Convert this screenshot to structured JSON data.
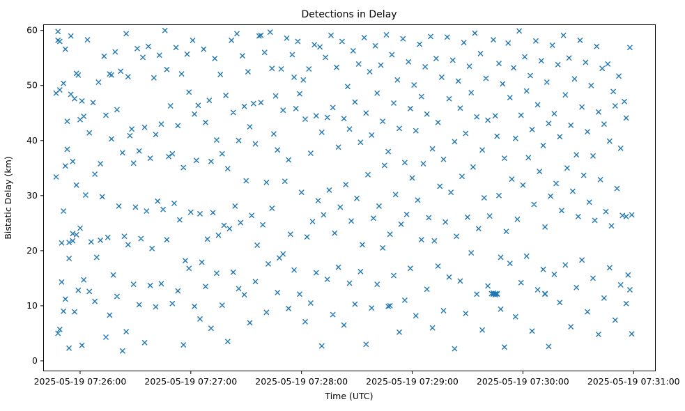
{
  "chart_data": {
    "type": "scatter",
    "title": "Detections in Delay",
    "xlabel": "Time (UTC)",
    "ylabel": "Bistatic Delay (km)",
    "marker": "x",
    "marker_color": "#1f77b4",
    "grid": false,
    "legend": null,
    "x_unit": "seconds relative to 2025-05-19 07:26:00 UTC",
    "xlim_seconds": [
      -20,
      312
    ],
    "ylim": [
      -1.9,
      61.1
    ],
    "x_tick_seconds": [
      0,
      60,
      120,
      180,
      240,
      300
    ],
    "x_tick_labels": [
      "2025-05-19 07:26:00",
      "2025-05-19 07:27:00",
      "2025-05-19 07:28:00",
      "2025-05-19 07:29:00",
      "2025-05-19 07:30:00",
      "2025-05-19 07:31:00"
    ],
    "y_ticks": [
      0,
      10,
      20,
      30,
      40,
      50,
      60
    ],
    "points": [
      [
        -13,
        48.6
      ],
      [
        -12,
        58.2
      ],
      [
        -13,
        33.4
      ],
      [
        -11,
        58.0
      ],
      [
        -11,
        49.2
      ],
      [
        -10,
        21.4
      ],
      [
        -10,
        14.3
      ],
      [
        -12,
        59.8
      ],
      [
        -9,
        50.4
      ],
      [
        -9,
        27.2
      ],
      [
        -8,
        11.2
      ],
      [
        -12,
        5.0
      ],
      [
        -8,
        56.6
      ],
      [
        -7,
        43.5
      ],
      [
        -7,
        38.4
      ],
      [
        -6,
        21.5
      ],
      [
        -6,
        2.3
      ],
      [
        -5,
        59.0
      ],
      [
        -5,
        48.4
      ],
      [
        -4,
        36.2
      ],
      [
        -4,
        23.1
      ],
      [
        -3,
        8.9
      ],
      [
        -3,
        47.6
      ],
      [
        -2,
        31.9
      ],
      [
        -2,
        22.9
      ],
      [
        -1,
        12.8
      ],
      [
        -1,
        51.9
      ],
      [
        0,
        43.8
      ],
      [
        0,
        24.1
      ],
      [
        -6,
        18.6
      ],
      [
        -9,
        9.0
      ],
      [
        -2,
        52.2
      ],
      [
        -8,
        35.4
      ],
      [
        -4,
        21.8
      ],
      [
        -11,
        5.7
      ],
      [
        1,
        47.2
      ],
      [
        2,
        44.4
      ],
      [
        3,
        30.1
      ],
      [
        2,
        14.7
      ],
      [
        1,
        2.8
      ],
      [
        4,
        58.3
      ],
      [
        5,
        41.4
      ],
      [
        6,
        21.6
      ],
      [
        5,
        12.6
      ],
      [
        7,
        46.9
      ],
      [
        8,
        33.9
      ],
      [
        9,
        18.8
      ],
      [
        8,
        10.8
      ],
      [
        10,
        50.6
      ],
      [
        11,
        35.8
      ],
      [
        12,
        29.8
      ],
      [
        11,
        21.9
      ],
      [
        13,
        55.3
      ],
      [
        14,
        44.6
      ],
      [
        15,
        22.4
      ],
      [
        14,
        4.3
      ],
      [
        16,
        52.1
      ],
      [
        17,
        51.9
      ],
      [
        17,
        40.3
      ],
      [
        18,
        15.6
      ],
      [
        16,
        8.3
      ],
      [
        19,
        56.1
      ],
      [
        20,
        45.6
      ],
      [
        21,
        28.1
      ],
      [
        20,
        11.7
      ],
      [
        22,
        52.6
      ],
      [
        23,
        37.8
      ],
      [
        24,
        22.6
      ],
      [
        23,
        1.8
      ],
      [
        25,
        59.4
      ],
      [
        26,
        51.6
      ],
      [
        27,
        40.9
      ],
      [
        26,
        21.1
      ],
      [
        25,
        5.3
      ],
      [
        28,
        42.1
      ],
      [
        29,
        35.9
      ],
      [
        30,
        27.9
      ],
      [
        29,
        13.9
      ],
      [
        31,
        56.7
      ],
      [
        32,
        38.1
      ],
      [
        33,
        22.2
      ],
      [
        32,
        10.2
      ],
      [
        34,
        55.1
      ],
      [
        35,
        42.4
      ],
      [
        36,
        27.2
      ],
      [
        35,
        3.3
      ],
      [
        37,
        57.1
      ],
      [
        38,
        36.8
      ],
      [
        39,
        20.4
      ],
      [
        38,
        13.7
      ],
      [
        40,
        51.4
      ],
      [
        41,
        41.1
      ],
      [
        42,
        29.0
      ],
      [
        41,
        9.8
      ],
      [
        43,
        55.5
      ],
      [
        44,
        43.0
      ],
      [
        45,
        27.5
      ],
      [
        44,
        14.0
      ],
      [
        46,
        60.0
      ],
      [
        47,
        52.9
      ],
      [
        48,
        37.1
      ],
      [
        47,
        22.0
      ],
      [
        49,
        46.3
      ],
      [
        50,
        37.6
      ],
      [
        51,
        28.6
      ],
      [
        50,
        10.4
      ],
      [
        52,
        56.9
      ],
      [
        53,
        42.7
      ],
      [
        54,
        25.6
      ],
      [
        53,
        12.7
      ],
      [
        55,
        52.1
      ],
      [
        56,
        35.1
      ],
      [
        57,
        18.2
      ],
      [
        56,
        2.9
      ],
      [
        58,
        55.7
      ],
      [
        59,
        48.8
      ],
      [
        60,
        27.0
      ],
      [
        59,
        16.8
      ],
      [
        61,
        58.2
      ],
      [
        62,
        44.8
      ],
      [
        63,
        36.4
      ],
      [
        62,
        9.9
      ],
      [
        64,
        46.4
      ],
      [
        65,
        26.7
      ],
      [
        66,
        17.9
      ],
      [
        65,
        7.6
      ],
      [
        67,
        56.6
      ],
      [
        68,
        43.3
      ],
      [
        69,
        22.1
      ],
      [
        68,
        13.5
      ],
      [
        70,
        47.3
      ],
      [
        71,
        36.2
      ],
      [
        72,
        26.9
      ],
      [
        71,
        5.9
      ],
      [
        73,
        54.9
      ],
      [
        74,
        40.1
      ],
      [
        75,
        22.8
      ],
      [
        74,
        15.9
      ],
      [
        76,
        52.0
      ],
      [
        77,
        37.6
      ],
      [
        78,
        24.6
      ],
      [
        77,
        10.1
      ],
      [
        79,
        48.2
      ],
      [
        80,
        34.9
      ],
      [
        81,
        24.0
      ],
      [
        80,
        3.5
      ],
      [
        82,
        58.2
      ],
      [
        83,
        45.1
      ],
      [
        84,
        28.1
      ],
      [
        83,
        16.1
      ],
      [
        85,
        59.4
      ],
      [
        86,
        40.0
      ],
      [
        87,
        25.1
      ],
      [
        86,
        13.1
      ],
      [
        88,
        55.4
      ],
      [
        89,
        46.2
      ],
      [
        90,
        32.7
      ],
      [
        89,
        12.0
      ],
      [
        91,
        52.5
      ],
      [
        92,
        42.5
      ],
      [
        93,
        26.4
      ],
      [
        92,
        6.9
      ],
      [
        94,
        46.7
      ],
      [
        95,
        39.4
      ],
      [
        96,
        21.0
      ],
      [
        95,
        14.4
      ],
      [
        97,
        59.0
      ],
      [
        98,
        59.1
      ],
      [
        98,
        46.9
      ],
      [
        99,
        24.7
      ],
      [
        100,
        56.0
      ],
      [
        101,
        32.4
      ],
      [
        102,
        17.6
      ],
      [
        101,
        8.8
      ],
      [
        103,
        59.7
      ],
      [
        104,
        53.1
      ],
      [
        105,
        41.2
      ],
      [
        104,
        27.7
      ],
      [
        106,
        48.1
      ],
      [
        107,
        38.3
      ],
      [
        108,
        18.7
      ],
      [
        107,
        12.4
      ],
      [
        109,
        53.0
      ],
      [
        110,
        45.5
      ],
      [
        111,
        32.6
      ],
      [
        110,
        19.4
      ],
      [
        112,
        58.6
      ],
      [
        113,
        36.5
      ],
      [
        114,
        23.0
      ],
      [
        113,
        9.5
      ],
      [
        115,
        55.6
      ],
      [
        116,
        51.5
      ],
      [
        117,
        45.8
      ],
      [
        116,
        16.5
      ],
      [
        118,
        58.0
      ],
      [
        119,
        48.5
      ],
      [
        120,
        30.6
      ],
      [
        119,
        12.1
      ],
      [
        121,
        51.0
      ],
      [
        122,
        43.9
      ],
      [
        123,
        22.5
      ],
      [
        122,
        7.1
      ],
      [
        124,
        53.0
      ],
      [
        125,
        37.7
      ],
      [
        126,
        25.3
      ],
      [
        125,
        10.5
      ],
      [
        127,
        57.4
      ],
      [
        128,
        44.5
      ],
      [
        129,
        29.1
      ],
      [
        128,
        16.0
      ],
      [
        130,
        57.0
      ],
      [
        131,
        41.5
      ],
      [
        132,
        26.5
      ],
      [
        131,
        2.7
      ],
      [
        133,
        55.1
      ],
      [
        134,
        44.2
      ],
      [
        135,
        31.0
      ],
      [
        134,
        14.8
      ],
      [
        136,
        59.1
      ],
      [
        137,
        46.0
      ],
      [
        138,
        23.2
      ],
      [
        137,
        8.4
      ],
      [
        139,
        53.3
      ],
      [
        140,
        38.8
      ],
      [
        141,
        27.9
      ],
      [
        140,
        17.0
      ],
      [
        142,
        58.0
      ],
      [
        143,
        44.0
      ],
      [
        144,
        32.0
      ],
      [
        143,
        6.5
      ],
      [
        145,
        49.8
      ],
      [
        146,
        42.1
      ],
      [
        147,
        25.4
      ],
      [
        146,
        14.1
      ],
      [
        148,
        56.3
      ],
      [
        149,
        47.0
      ],
      [
        150,
        29.5
      ],
      [
        149,
        10.3
      ],
      [
        151,
        53.9
      ],
      [
        152,
        39.7
      ],
      [
        153,
        21.1
      ],
      [
        152,
        16.2
      ],
      [
        154,
        58.7
      ],
      [
        155,
        45.0
      ],
      [
        156,
        33.8
      ],
      [
        155,
        3.0
      ],
      [
        157,
        52.5
      ],
      [
        158,
        41.0
      ],
      [
        159,
        25.9
      ],
      [
        158,
        9.6
      ],
      [
        160,
        57.2
      ],
      [
        161,
        48.6
      ],
      [
        162,
        28.1
      ],
      [
        161,
        13.9
      ],
      [
        163,
        53.7
      ],
      [
        164,
        43.5
      ],
      [
        165,
        35.5
      ],
      [
        164,
        20.5
      ],
      [
        166,
        59.2
      ],
      [
        167,
        38.0
      ],
      [
        168,
        23.0
      ],
      [
        167,
        9.9
      ],
      [
        168,
        10.0
      ],
      [
        169,
        55.6
      ],
      [
        170,
        46.8
      ],
      [
        171,
        30.2
      ],
      [
        170,
        15.5
      ],
      [
        172,
        51.0
      ],
      [
        173,
        42.2
      ],
      [
        174,
        24.8
      ],
      [
        173,
        5.2
      ],
      [
        175,
        58.5
      ],
      [
        176,
        36.0
      ],
      [
        177,
        26.6
      ],
      [
        176,
        11.0
      ],
      [
        178,
        54.3
      ],
      [
        179,
        45.8
      ],
      [
        180,
        33.2
      ],
      [
        179,
        16.8
      ],
      [
        181,
        50.1
      ],
      [
        182,
        41.8
      ],
      [
        183,
        29.2
      ],
      [
        182,
        8.2
      ],
      [
        184,
        57.5
      ],
      [
        185,
        48.0
      ],
      [
        186,
        35.8
      ],
      [
        185,
        22.0
      ],
      [
        187,
        53.4
      ],
      [
        188,
        44.8
      ],
      [
        189,
        26.0
      ],
      [
        188,
        13.0
      ],
      [
        190,
        58.9
      ],
      [
        191,
        38.5
      ],
      [
        192,
        21.8
      ],
      [
        191,
        6.0
      ],
      [
        193,
        54.9
      ],
      [
        194,
        43.3
      ],
      [
        195,
        31.7
      ],
      [
        194,
        17.2
      ],
      [
        196,
        51.5
      ],
      [
        197,
        36.6
      ],
      [
        198,
        25.2
      ],
      [
        197,
        9.1
      ],
      [
        199,
        58.8
      ],
      [
        200,
        47.6
      ],
      [
        201,
        30.6
      ],
      [
        200,
        15.2
      ],
      [
        202,
        54.6
      ],
      [
        203,
        39.8
      ],
      [
        204,
        22.6
      ],
      [
        203,
        2.2
      ],
      [
        205,
        50.8
      ],
      [
        206,
        45.9
      ],
      [
        207,
        33.5
      ],
      [
        206,
        14.5
      ],
      [
        208,
        57.8
      ],
      [
        209,
        41.3
      ],
      [
        210,
        26.1
      ],
      [
        209,
        8.6
      ],
      [
        211,
        53.5
      ],
      [
        212,
        48.7
      ],
      [
        213,
        35.2
      ],
      [
        212,
        19.6
      ],
      [
        214,
        59.5
      ],
      [
        215,
        44.3
      ],
      [
        216,
        24.0
      ],
      [
        215,
        12.1
      ],
      [
        217,
        55.8
      ],
      [
        218,
        38.3
      ],
      [
        219,
        29.6
      ],
      [
        218,
        5.6
      ],
      [
        220,
        51.3
      ],
      [
        221,
        43.7
      ],
      [
        222,
        26.3
      ],
      [
        221,
        13.6
      ],
      [
        223,
        12.2
      ],
      [
        224,
        12.1
      ],
      [
        224,
        12.3
      ],
      [
        225,
        12.0
      ],
      [
        225,
        12.2
      ],
      [
        226,
        12.1
      ],
      [
        226,
        12.2
      ],
      [
        224,
        58.3
      ],
      [
        225,
        44.5
      ],
      [
        226,
        40.8
      ],
      [
        227,
        54.0
      ],
      [
        227,
        30.0
      ],
      [
        228,
        18.8
      ],
      [
        228,
        9.4
      ],
      [
        229,
        50.3
      ],
      [
        230,
        36.8
      ],
      [
        231,
        23.5
      ],
      [
        230,
        2.5
      ],
      [
        232,
        57.7
      ],
      [
        233,
        47.8
      ],
      [
        234,
        33.0
      ],
      [
        233,
        17.7
      ],
      [
        235,
        53.2
      ],
      [
        236,
        40.4
      ],
      [
        237,
        25.7
      ],
      [
        236,
        8.0
      ],
      [
        238,
        59.9
      ],
      [
        239,
        44.6
      ],
      [
        240,
        31.9
      ],
      [
        239,
        14.2
      ],
      [
        241,
        55.2
      ],
      [
        242,
        49.0
      ],
      [
        243,
        36.9
      ],
      [
        242,
        19.0
      ],
      [
        244,
        51.8
      ],
      [
        245,
        42.0
      ],
      [
        246,
        28.4
      ],
      [
        245,
        5.4
      ],
      [
        247,
        58.1
      ],
      [
        248,
        46.5
      ],
      [
        249,
        34.4
      ],
      [
        248,
        12.9
      ],
      [
        250,
        54.5
      ],
      [
        251,
        39.1
      ],
      [
        252,
        24.3
      ],
      [
        251,
        16.6
      ],
      [
        252,
        12.2
      ],
      [
        252,
        12.1
      ],
      [
        253,
        50.6
      ],
      [
        254,
        43.1
      ],
      [
        255,
        29.9
      ],
      [
        254,
        2.6
      ],
      [
        256,
        57.3
      ],
      [
        257,
        44.9
      ],
      [
        258,
        32.2
      ],
      [
        257,
        15.7
      ],
      [
        259,
        53.8
      ],
      [
        260,
        40.7
      ],
      [
        261,
        27.3
      ],
      [
        260,
        10.6
      ],
      [
        262,
        59.1
      ],
      [
        263,
        48.3
      ],
      [
        264,
        35.0
      ],
      [
        263,
        17.4
      ],
      [
        265,
        55.0
      ],
      [
        266,
        42.8
      ],
      [
        267,
        30.8
      ],
      [
        266,
        6.2
      ],
      [
        268,
        51.2
      ],
      [
        269,
        37.4
      ],
      [
        270,
        26.2
      ],
      [
        269,
        13.3
      ],
      [
        271,
        58.2
      ],
      [
        272,
        46.1
      ],
      [
        273,
        33.7
      ],
      [
        272,
        18.3
      ],
      [
        274,
        54.2
      ],
      [
        275,
        41.6
      ],
      [
        276,
        28.8
      ],
      [
        275,
        8.9
      ],
      [
        277,
        50.0
      ],
      [
        278,
        37.2
      ],
      [
        279,
        25.5
      ],
      [
        278,
        15.0
      ],
      [
        280,
        57.1
      ],
      [
        281,
        45.2
      ],
      [
        282,
        32.9
      ],
      [
        281,
        4.8
      ],
      [
        283,
        53.1
      ],
      [
        284,
        43.0
      ],
      [
        285,
        27.1
      ],
      [
        284,
        11.4
      ],
      [
        286,
        53.9
      ],
      [
        287,
        39.9
      ],
      [
        288,
        24.5
      ],
      [
        287,
        16.9
      ],
      [
        289,
        48.9
      ],
      [
        290,
        46.3
      ],
      [
        291,
        31.3
      ],
      [
        290,
        7.4
      ],
      [
        292,
        51.7
      ],
      [
        293,
        38.6
      ],
      [
        294,
        26.4
      ],
      [
        293,
        13.8
      ],
      [
        295,
        47.1
      ],
      [
        296,
        44.1
      ],
      [
        296,
        26.2
      ],
      [
        297,
        15.6
      ],
      [
        296,
        10.4
      ],
      [
        298,
        56.9
      ],
      [
        299,
        26.5
      ],
      [
        298,
        12.9
      ],
      [
        299,
        4.9
      ]
    ]
  }
}
